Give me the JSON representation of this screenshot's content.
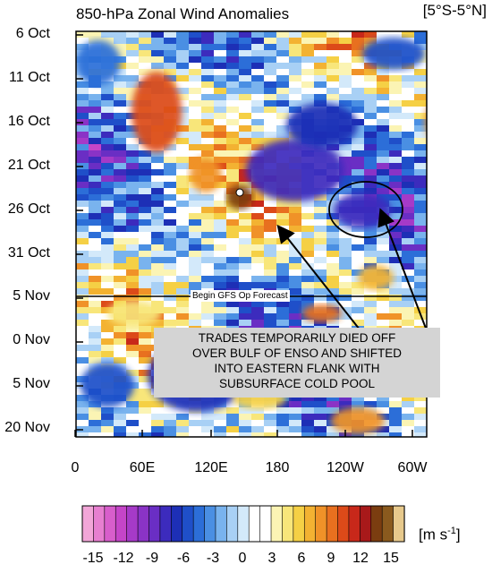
{
  "chart_data": {
    "type": "heatmap",
    "title": "850-hPa Zonal Wind Anomalies",
    "region": "[5°S-5°N]",
    "y_tick_labels": [
      "6 Oct",
      "11 Oct",
      "16 Oct",
      "21 Oct",
      "26 Oct",
      "31 Oct",
      "5 Nov",
      "0 Nov",
      "5 Nov",
      "20 Nov"
    ],
    "x_tick_labels": [
      "0",
      "60E",
      "120E",
      "180",
      "120W",
      "60W"
    ],
    "x_range": [
      "0",
      "80W"
    ],
    "colorbar": {
      "tick_labels": [
        "-15",
        "-12",
        "-9",
        "-6",
        "-3",
        "0",
        "3",
        "6",
        "9",
        "12",
        "15"
      ],
      "units": "m s",
      "units_exponent": "-1",
      "colors": [
        "#f2a6d8",
        "#e77fd0",
        "#d85ecb",
        "#c545c8",
        "#a63ac8",
        "#8a33c6",
        "#6a2ec4",
        "#3c2bbd",
        "#1d2fb6",
        "#1f4fc9",
        "#2c6ed8",
        "#4a8fe3",
        "#79b3ee",
        "#a8d0f5",
        "#d3e9fa",
        "#ffffff",
        "#ffffff",
        "#fbf4b4",
        "#f8e67a",
        "#f5d045",
        "#f3b232",
        "#f09228",
        "#e8701f",
        "#dc4a19",
        "#c8281a",
        "#a8191a",
        "#7b3d10",
        "#8a5a1e",
        "#e7c98c"
      ]
    },
    "forecast_line": {
      "date": "5 Nov",
      "label": "Begin GFS Op Forecast"
    },
    "annotation": {
      "text": "TRADES TEMPORARILY DIED OFF\nOVER BULF OF ENSO AND SHIFTED\nINTO EASTERN FLANK WITH\nSUBSURFACE COLD POOL",
      "circled_region": "eastern Pacific ~120W-100W, ~26 Oct"
    },
    "features": [
      {
        "name": "westerly burst",
        "lon": "60E-100E",
        "dates": "11 Oct-21 Oct",
        "sign": "positive",
        "value": 10
      },
      {
        "name": "westerly burst",
        "lon": "150E-160E",
        "dates": "23 Oct-28 Oct",
        "sign": "positive",
        "value": 12
      },
      {
        "name": "easterly anomaly",
        "lon": "160E-140W",
        "dates": "16 Oct-30 Oct",
        "sign": "negative",
        "value": -8
      },
      {
        "name": "easterly anomaly",
        "lon": "120W-100W",
        "dates": "24 Oct-28 Oct",
        "sign": "negative",
        "value": -7
      }
    ]
  }
}
